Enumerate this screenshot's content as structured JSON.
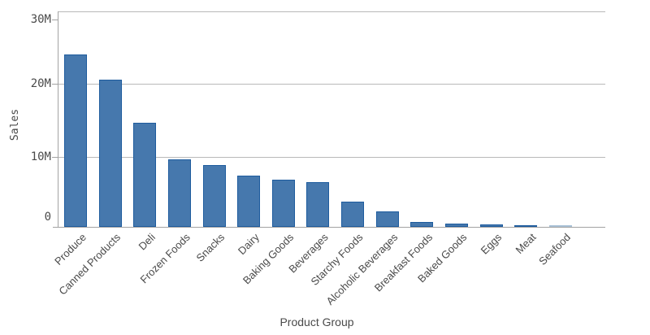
{
  "chart_data": {
    "type": "bar",
    "title": "",
    "xlabel": "Product Group",
    "ylabel": "Sales",
    "categories": [
      "Produce",
      "Canned Products",
      "Deli",
      "Frozen Foods",
      "Snacks",
      "Dairy",
      "Baking Goods",
      "Beverages",
      "Starchy Foods",
      "Alcoholic Beverages",
      "Breakfast Foods",
      "Baked Goods",
      "Eggs",
      "Meat",
      "Seafood"
    ],
    "values": [
      24.0,
      20.5,
      14.5,
      9.4,
      8.6,
      7.1,
      6.6,
      6.2,
      3.5,
      2.1,
      0.7,
      0.45,
      0.3,
      0.15,
      0.1
    ],
    "unit": "M",
    "ylim": [
      0,
      30
    ],
    "yticks": [
      "30M",
      "20M",
      "10M",
      "0"
    ],
    "grid": true,
    "legend": "none",
    "bar_color": "#4678ad",
    "bar_border_color": "#1e5c9e",
    "last_bar_color": "#ccdae7",
    "last_bar_border_color": "#a9c1d6"
  }
}
